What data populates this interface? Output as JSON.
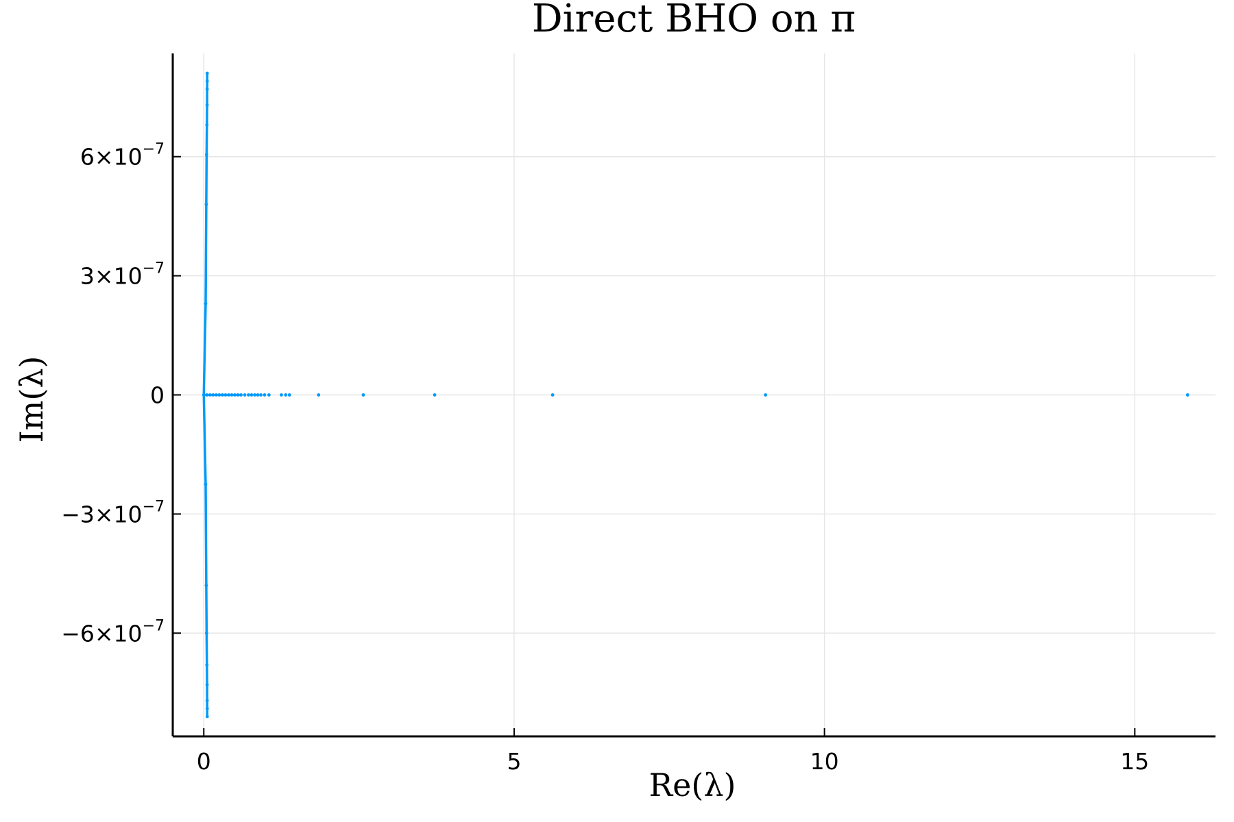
{
  "chart_data": {
    "type": "scatter",
    "title": "Direct BHO on π",
    "xlabel": "Re(λ)",
    "ylabel": "Im(λ)",
    "xlim": [
      -0.5,
      16.3
    ],
    "ylim": [
      -8.6e-07,
      8.6e-07
    ],
    "grid": true,
    "legend": "none",
    "colors": {
      "series": "#009af9",
      "grid": "#e6e6e6",
      "axis": "#000000"
    },
    "xticks": [
      {
        "value": 0,
        "label": "0"
      },
      {
        "value": 5,
        "label": "5"
      },
      {
        "value": 10,
        "label": "10"
      },
      {
        "value": 15,
        "label": "15"
      }
    ],
    "yticks": [
      {
        "value": -6e-07,
        "mantissa": "−6×10",
        "exponent": "−7"
      },
      {
        "value": -3e-07,
        "mantissa": "−3×10",
        "exponent": "−7"
      },
      {
        "value": 0,
        "mantissa": "0",
        "exponent": ""
      },
      {
        "value": 3e-07,
        "mantissa": "3×10",
        "exponent": "−7"
      },
      {
        "value": 6e-07,
        "mantissa": "6×10",
        "exponent": "−7"
      }
    ],
    "series": [
      {
        "points": [
          {
            "x": 15.85,
            "y": 0
          },
          {
            "x": 9.05,
            "y": 0
          },
          {
            "x": 5.62,
            "y": 0
          },
          {
            "x": 3.72,
            "y": 0
          },
          {
            "x": 2.57,
            "y": 0
          },
          {
            "x": 1.85,
            "y": 0
          },
          {
            "x": 1.38,
            "y": 0
          },
          {
            "x": 1.32,
            "y": 0
          },
          {
            "x": 1.25,
            "y": 0
          },
          {
            "x": 1.05,
            "y": 0
          },
          {
            "x": 0.98,
            "y": 0
          },
          {
            "x": 0.92,
            "y": 0
          },
          {
            "x": 0.87,
            "y": 0
          },
          {
            "x": 0.82,
            "y": 0
          },
          {
            "x": 0.77,
            "y": 0
          },
          {
            "x": 0.72,
            "y": 0
          },
          {
            "x": 0.66,
            "y": 0
          },
          {
            "x": 0.6,
            "y": 0
          },
          {
            "x": 0.55,
            "y": 0
          },
          {
            "x": 0.5,
            "y": 0
          },
          {
            "x": 0.45,
            "y": 0
          },
          {
            "x": 0.4,
            "y": 0
          },
          {
            "x": 0.35,
            "y": 0
          },
          {
            "x": 0.3,
            "y": 0
          },
          {
            "x": 0.25,
            "y": 0
          },
          {
            "x": 0.2,
            "y": 0
          },
          {
            "x": 0.15,
            "y": 0
          },
          {
            "x": 0.1,
            "y": 0
          },
          {
            "x": 0.05,
            "y": 0
          },
          {
            "x": 0.0,
            "y": 0
          },
          {
            "x": 0.055,
            "y": 8.1e-07
          },
          {
            "x": 0.055,
            "y": 7.9e-07
          },
          {
            "x": 0.054,
            "y": 7.7e-07
          },
          {
            "x": 0.053,
            "y": 7.3e-07
          },
          {
            "x": 0.05,
            "y": 6.8e-07
          },
          {
            "x": 0.045,
            "y": 6.05e-07
          },
          {
            "x": 0.04,
            "y": 4.8e-07
          },
          {
            "x": 0.03,
            "y": 2.3e-07
          },
          {
            "x": 0.03,
            "y": -2.25e-07
          },
          {
            "x": 0.04,
            "y": -4.8e-07
          },
          {
            "x": 0.045,
            "y": -6e-07
          },
          {
            "x": 0.05,
            "y": -6.8e-07
          },
          {
            "x": 0.053,
            "y": -7.3e-07
          },
          {
            "x": 0.054,
            "y": -7.7e-07
          },
          {
            "x": 0.055,
            "y": -7.9e-07
          },
          {
            "x": 0.055,
            "y": -8.1e-07
          }
        ]
      }
    ]
  }
}
